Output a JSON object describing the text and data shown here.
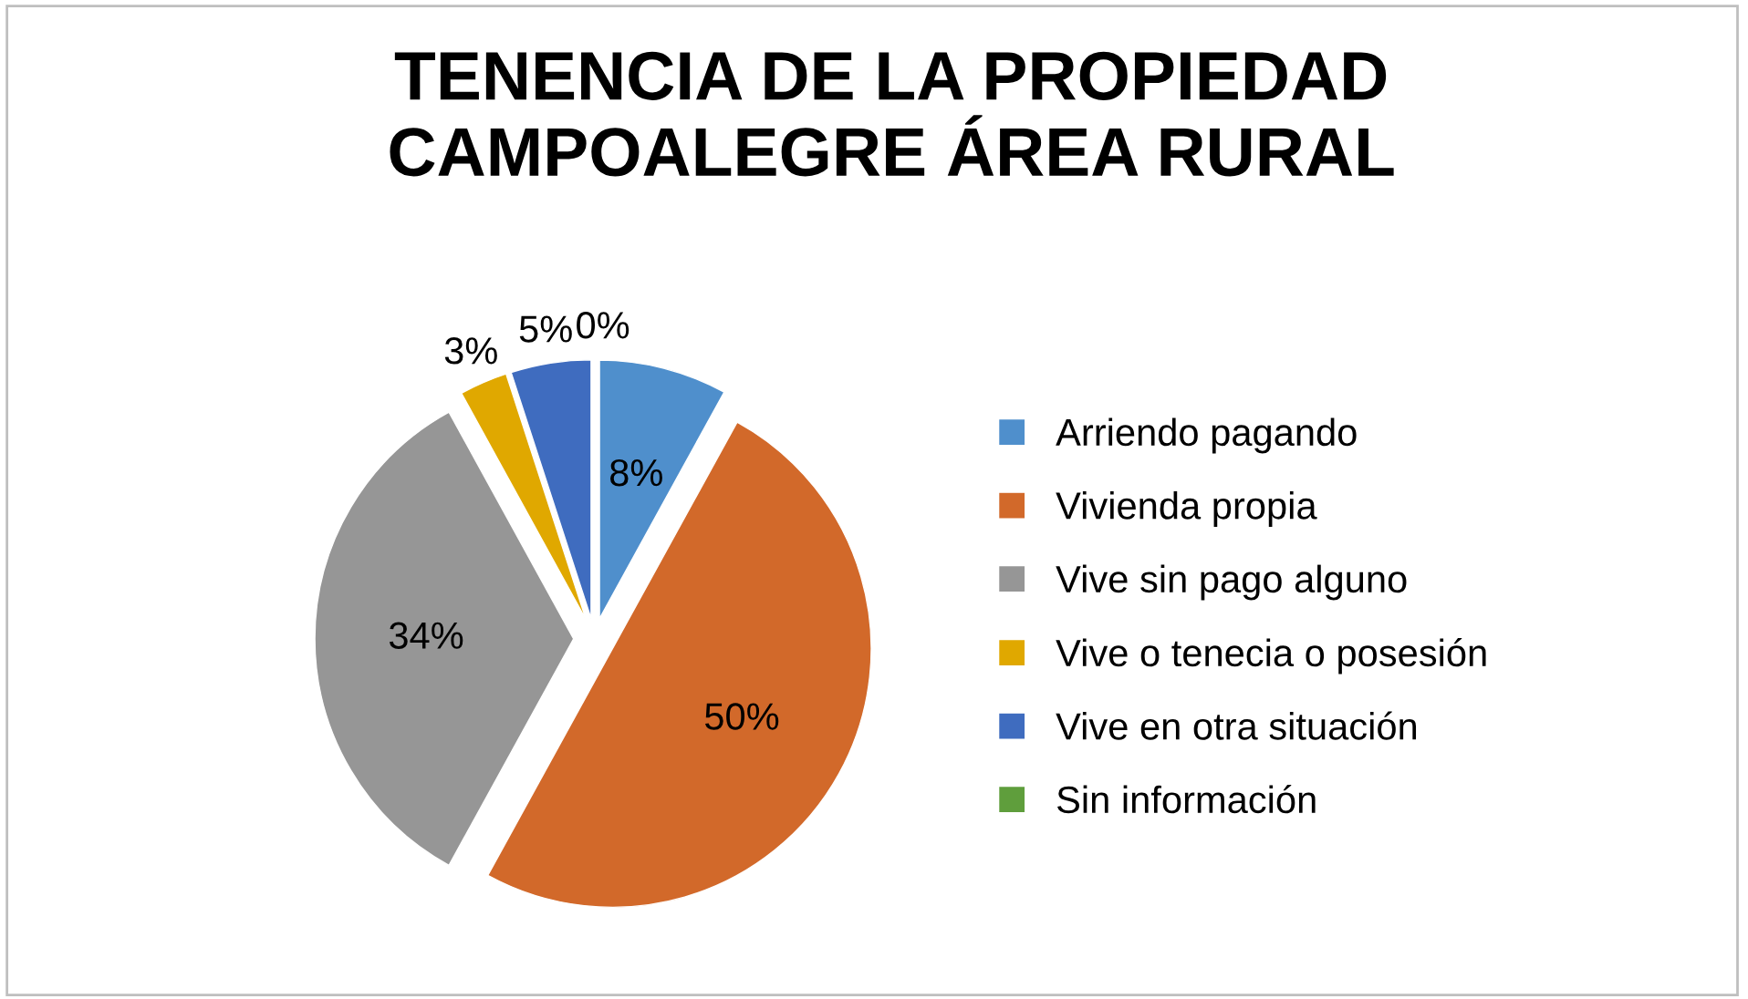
{
  "chart_data": {
    "type": "pie",
    "title": "TENENCIA DE LA PROPIEDAD\nCAMPOALEGRE ÁREA RURAL",
    "categories": [
      "Arriendo pagando",
      "Vivienda propia",
      "Vive sin pago alguno",
      "Vive o tenecia o posesión",
      "Vive en otra situación",
      "Sin información"
    ],
    "values": [
      8,
      50,
      34,
      3,
      5,
      0
    ],
    "colors": [
      "#4f8fcc",
      "#d2692a",
      "#969696",
      "#e0a800",
      "#3f6cbf",
      "#5f9e3c"
    ],
    "value_labels": [
      "8%",
      "50%",
      "34%",
      "3%",
      "5%",
      "0%"
    ],
    "legend": "right"
  }
}
